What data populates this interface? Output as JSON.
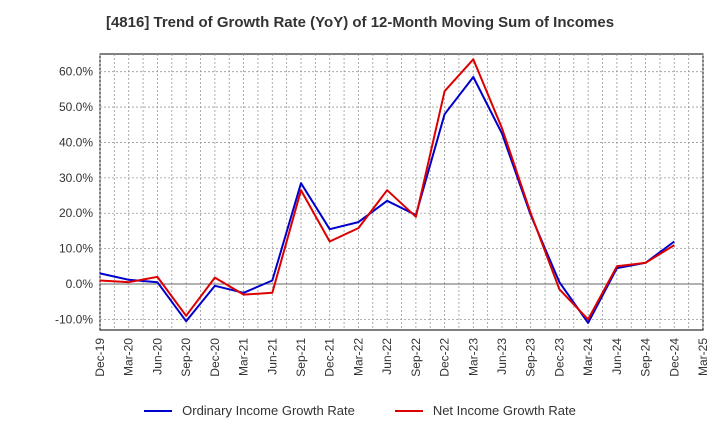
{
  "chart_data": {
    "type": "line",
    "title": "[4816]  Trend of Growth Rate (YoY) of 12-Month Moving Sum of Incomes",
    "x": [
      "Dec-19",
      "Mar-20",
      "Jun-20",
      "Sep-20",
      "Dec-20",
      "Mar-21",
      "Jun-21",
      "Sep-21",
      "Dec-21",
      "Mar-22",
      "Jun-22",
      "Sep-22",
      "Dec-22",
      "Mar-23",
      "Jun-23",
      "Sep-23",
      "Dec-23",
      "Mar-24",
      "Jun-24",
      "Sep-24",
      "Dec-24",
      "Mar-25"
    ],
    "yticks": [
      "-10.0%",
      "0.0%",
      "10.0%",
      "20.0%",
      "30.0%",
      "40.0%",
      "50.0%",
      "60.0%"
    ],
    "ylim": [
      -13,
      65
    ],
    "grid": true,
    "legend_position": "bottom",
    "series": [
      {
        "name": "Ordinary Income Growth Rate",
        "color": "#0000cc",
        "values": [
          3.0,
          1.2,
          0.5,
          -10.5,
          -0.5,
          -2.5,
          1.0,
          28.5,
          15.5,
          17.5,
          23.5,
          19.5,
          48.0,
          58.5,
          42.5,
          19.5,
          0.5,
          -11.0,
          4.5,
          6.0,
          12.0,
          null
        ]
      },
      {
        "name": "Net Income Growth Rate",
        "color": "#dd0000",
        "values": [
          1.0,
          0.5,
          2.0,
          -9.0,
          1.8,
          -3.0,
          -2.5,
          26.5,
          12.0,
          15.8,
          26.5,
          19.0,
          54.5,
          63.5,
          44.0,
          20.0,
          -1.5,
          -10.0,
          5.0,
          6.0,
          11.0,
          null
        ]
      }
    ]
  }
}
